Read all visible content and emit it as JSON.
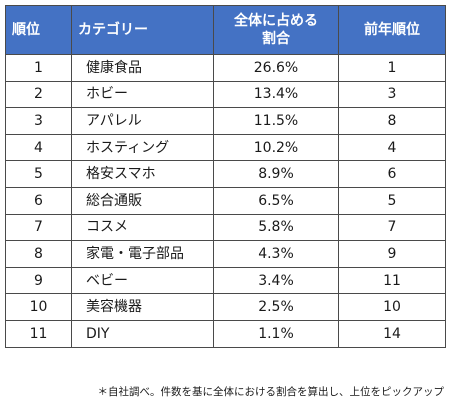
{
  "table": {
    "headers": {
      "rank": "順位",
      "category": "カテゴリー",
      "share_line1": "全体に占める",
      "share_line2": "割合",
      "prev_rank": "前年順位"
    },
    "rows": [
      {
        "rank": "1",
        "category": "健康食品",
        "share": "26.6%",
        "prev": "1"
      },
      {
        "rank": "2",
        "category": "ホビー",
        "share": "13.4%",
        "prev": "3"
      },
      {
        "rank": "3",
        "category": "アパレル",
        "share": "11.5%",
        "prev": "8"
      },
      {
        "rank": "4",
        "category": "ホスティング",
        "share": "10.2%",
        "prev": "4"
      },
      {
        "rank": "5",
        "category": "格安スマホ",
        "share": "8.9%",
        "prev": "6"
      },
      {
        "rank": "6",
        "category": "総合通販",
        "share": "6.5%",
        "prev": "5"
      },
      {
        "rank": "7",
        "category": "コスメ",
        "share": "5.8%",
        "prev": "7"
      },
      {
        "rank": "8",
        "category": "家電・電子部品",
        "share": "4.3%",
        "prev": "9"
      },
      {
        "rank": "9",
        "category": "ベビー",
        "share": "3.4%",
        "prev": "11"
      },
      {
        "rank": "10",
        "category": "美容機器",
        "share": "2.5%",
        "prev": "10"
      },
      {
        "rank": "11",
        "category": "DIY",
        "share": "1.1%",
        "prev": "14"
      }
    ]
  },
  "footnote": "＊自社調べ。件数を基に全体における割合を算出し、上位をピックアップ",
  "colors": {
    "header_bg": "#4472c4",
    "header_text": "#ffffff",
    "border": "#4a4a4a"
  }
}
